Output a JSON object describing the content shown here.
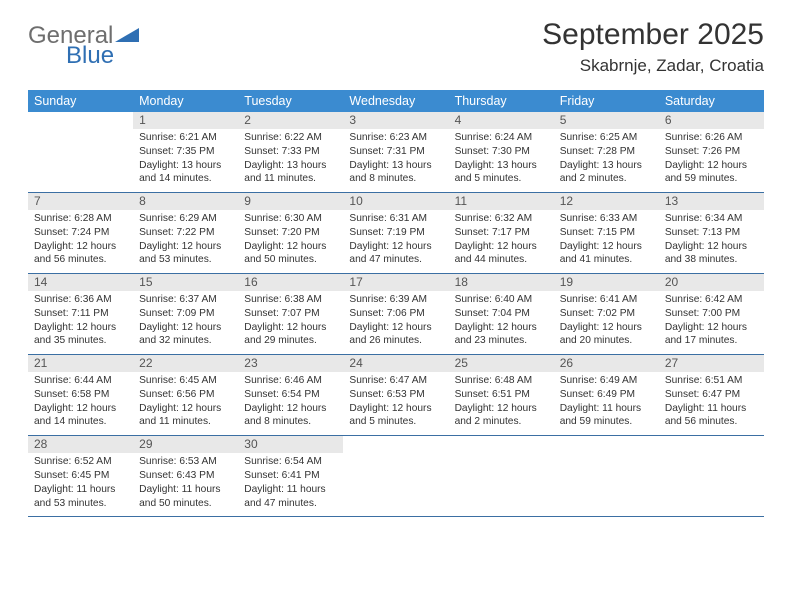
{
  "brand": {
    "part1": "General",
    "part2": "Blue",
    "text_color": "#6e6e6e",
    "accent_color": "#2f6fb3"
  },
  "title": "September 2025",
  "location": "Skabrnje, Zadar, Croatia",
  "colors": {
    "header_bg": "#3b8bd0",
    "header_fg": "#ffffff",
    "daynum_bg": "#e8e8e8",
    "row_border": "#3b6fa3",
    "page_bg": "#ffffff",
    "text": "#333333"
  },
  "day_headers": [
    "Sunday",
    "Monday",
    "Tuesday",
    "Wednesday",
    "Thursday",
    "Friday",
    "Saturday"
  ],
  "weeks": [
    [
      null,
      {
        "n": "1",
        "sr": "6:21 AM",
        "ss": "7:35 PM",
        "dl": "13 hours and 14 minutes."
      },
      {
        "n": "2",
        "sr": "6:22 AM",
        "ss": "7:33 PM",
        "dl": "13 hours and 11 minutes."
      },
      {
        "n": "3",
        "sr": "6:23 AM",
        "ss": "7:31 PM",
        "dl": "13 hours and 8 minutes."
      },
      {
        "n": "4",
        "sr": "6:24 AM",
        "ss": "7:30 PM",
        "dl": "13 hours and 5 minutes."
      },
      {
        "n": "5",
        "sr": "6:25 AM",
        "ss": "7:28 PM",
        "dl": "13 hours and 2 minutes."
      },
      {
        "n": "6",
        "sr": "6:26 AM",
        "ss": "7:26 PM",
        "dl": "12 hours and 59 minutes."
      }
    ],
    [
      {
        "n": "7",
        "sr": "6:28 AM",
        "ss": "7:24 PM",
        "dl": "12 hours and 56 minutes."
      },
      {
        "n": "8",
        "sr": "6:29 AM",
        "ss": "7:22 PM",
        "dl": "12 hours and 53 minutes."
      },
      {
        "n": "9",
        "sr": "6:30 AM",
        "ss": "7:20 PM",
        "dl": "12 hours and 50 minutes."
      },
      {
        "n": "10",
        "sr": "6:31 AM",
        "ss": "7:19 PM",
        "dl": "12 hours and 47 minutes."
      },
      {
        "n": "11",
        "sr": "6:32 AM",
        "ss": "7:17 PM",
        "dl": "12 hours and 44 minutes."
      },
      {
        "n": "12",
        "sr": "6:33 AM",
        "ss": "7:15 PM",
        "dl": "12 hours and 41 minutes."
      },
      {
        "n": "13",
        "sr": "6:34 AM",
        "ss": "7:13 PM",
        "dl": "12 hours and 38 minutes."
      }
    ],
    [
      {
        "n": "14",
        "sr": "6:36 AM",
        "ss": "7:11 PM",
        "dl": "12 hours and 35 minutes."
      },
      {
        "n": "15",
        "sr": "6:37 AM",
        "ss": "7:09 PM",
        "dl": "12 hours and 32 minutes."
      },
      {
        "n": "16",
        "sr": "6:38 AM",
        "ss": "7:07 PM",
        "dl": "12 hours and 29 minutes."
      },
      {
        "n": "17",
        "sr": "6:39 AM",
        "ss": "7:06 PM",
        "dl": "12 hours and 26 minutes."
      },
      {
        "n": "18",
        "sr": "6:40 AM",
        "ss": "7:04 PM",
        "dl": "12 hours and 23 minutes."
      },
      {
        "n": "19",
        "sr": "6:41 AM",
        "ss": "7:02 PM",
        "dl": "12 hours and 20 minutes."
      },
      {
        "n": "20",
        "sr": "6:42 AM",
        "ss": "7:00 PM",
        "dl": "12 hours and 17 minutes."
      }
    ],
    [
      {
        "n": "21",
        "sr": "6:44 AM",
        "ss": "6:58 PM",
        "dl": "12 hours and 14 minutes."
      },
      {
        "n": "22",
        "sr": "6:45 AM",
        "ss": "6:56 PM",
        "dl": "12 hours and 11 minutes."
      },
      {
        "n": "23",
        "sr": "6:46 AM",
        "ss": "6:54 PM",
        "dl": "12 hours and 8 minutes."
      },
      {
        "n": "24",
        "sr": "6:47 AM",
        "ss": "6:53 PM",
        "dl": "12 hours and 5 minutes."
      },
      {
        "n": "25",
        "sr": "6:48 AM",
        "ss": "6:51 PM",
        "dl": "12 hours and 2 minutes."
      },
      {
        "n": "26",
        "sr": "6:49 AM",
        "ss": "6:49 PM",
        "dl": "11 hours and 59 minutes."
      },
      {
        "n": "27",
        "sr": "6:51 AM",
        "ss": "6:47 PM",
        "dl": "11 hours and 56 minutes."
      }
    ],
    [
      {
        "n": "28",
        "sr": "6:52 AM",
        "ss": "6:45 PM",
        "dl": "11 hours and 53 minutes."
      },
      {
        "n": "29",
        "sr": "6:53 AM",
        "ss": "6:43 PM",
        "dl": "11 hours and 50 minutes."
      },
      {
        "n": "30",
        "sr": "6:54 AM",
        "ss": "6:41 PM",
        "dl": "11 hours and 47 minutes."
      },
      null,
      null,
      null,
      null
    ]
  ],
  "labels": {
    "sunrise": "Sunrise:",
    "sunset": "Sunset:",
    "daylight": "Daylight:"
  }
}
